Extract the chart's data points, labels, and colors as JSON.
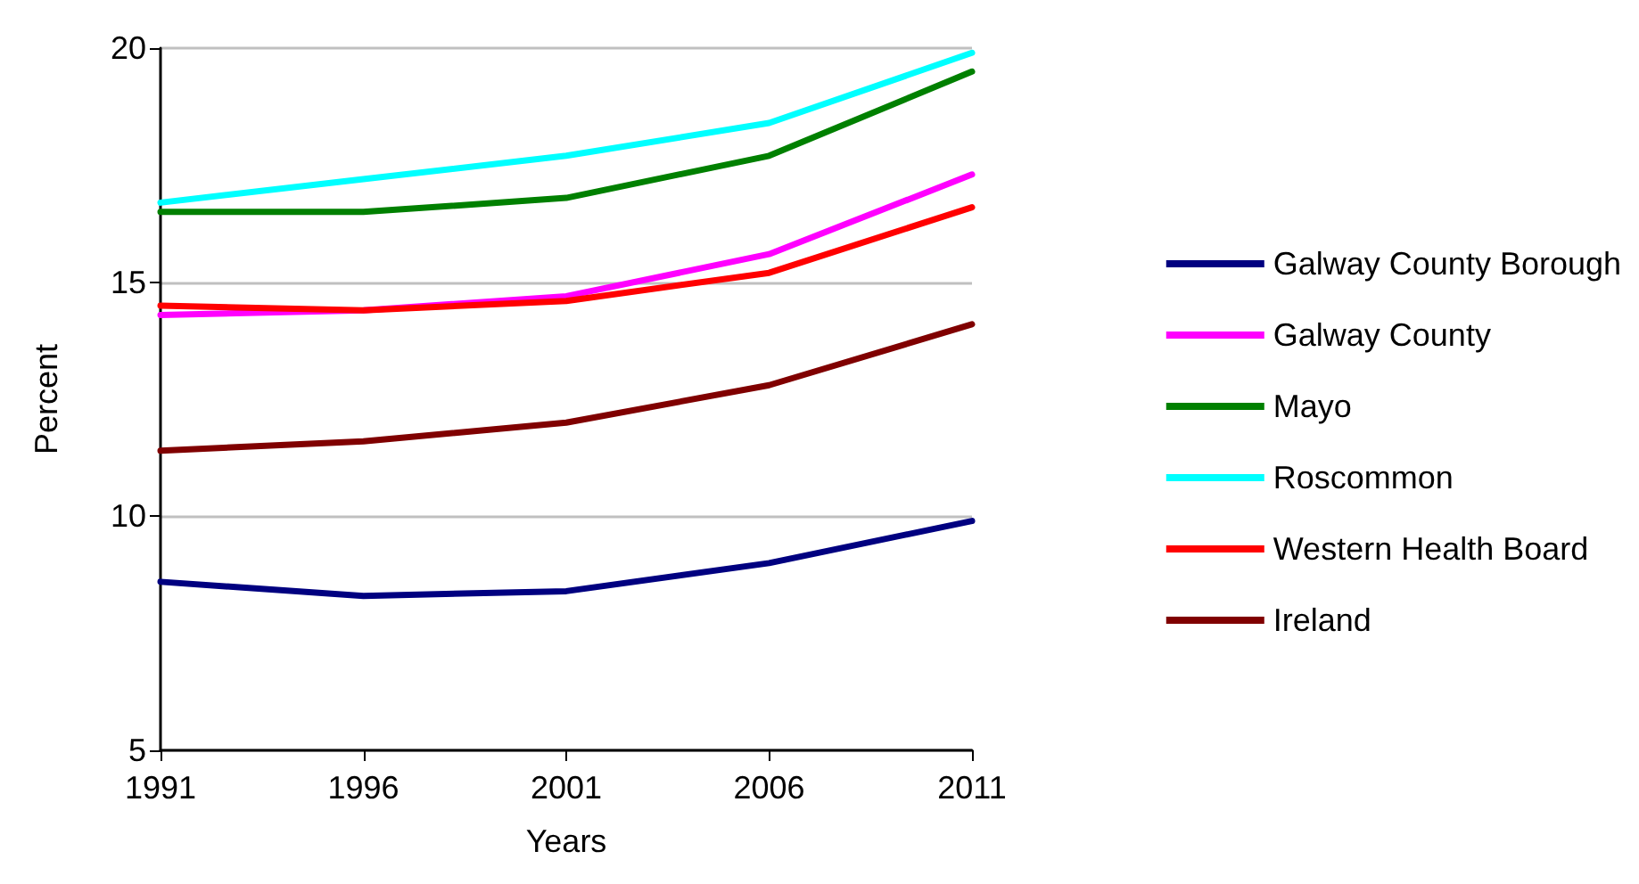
{
  "chart_data": {
    "type": "line",
    "xlabel": "Years",
    "ylabel": "Percent",
    "x": [
      1991,
      1996,
      2001,
      2006,
      2011
    ],
    "xlim": [
      1991,
      2011
    ],
    "xticks": [
      1991,
      1996,
      2001,
      2006,
      2011
    ],
    "ylim": [
      5,
      20
    ],
    "yticks": [
      5,
      10,
      15,
      20
    ],
    "grid": "y",
    "legend": "right",
    "marker": "none",
    "line_style": "solid",
    "series": [
      {
        "name": "Galway County Borough",
        "color": "#000080",
        "values": [
          8.6,
          8.3,
          8.4,
          9.0,
          9.9
        ]
      },
      {
        "name": "Galway County",
        "color": "#ff00ff",
        "values": [
          14.3,
          14.4,
          14.7,
          15.6,
          17.3
        ]
      },
      {
        "name": "Mayo",
        "color": "#008000",
        "values": [
          16.5,
          16.5,
          16.8,
          17.7,
          19.5
        ]
      },
      {
        "name": "Roscommon",
        "color": "#00ffff",
        "values": [
          16.7,
          17.2,
          17.7,
          18.4,
          19.9
        ]
      },
      {
        "name": "Western Health Board",
        "color": "#ff0000",
        "values": [
          14.5,
          14.4,
          14.6,
          15.2,
          16.6
        ]
      },
      {
        "name": "Ireland",
        "color": "#800000",
        "values": [
          11.4,
          11.6,
          12.0,
          12.8,
          14.1
        ]
      }
    ]
  }
}
